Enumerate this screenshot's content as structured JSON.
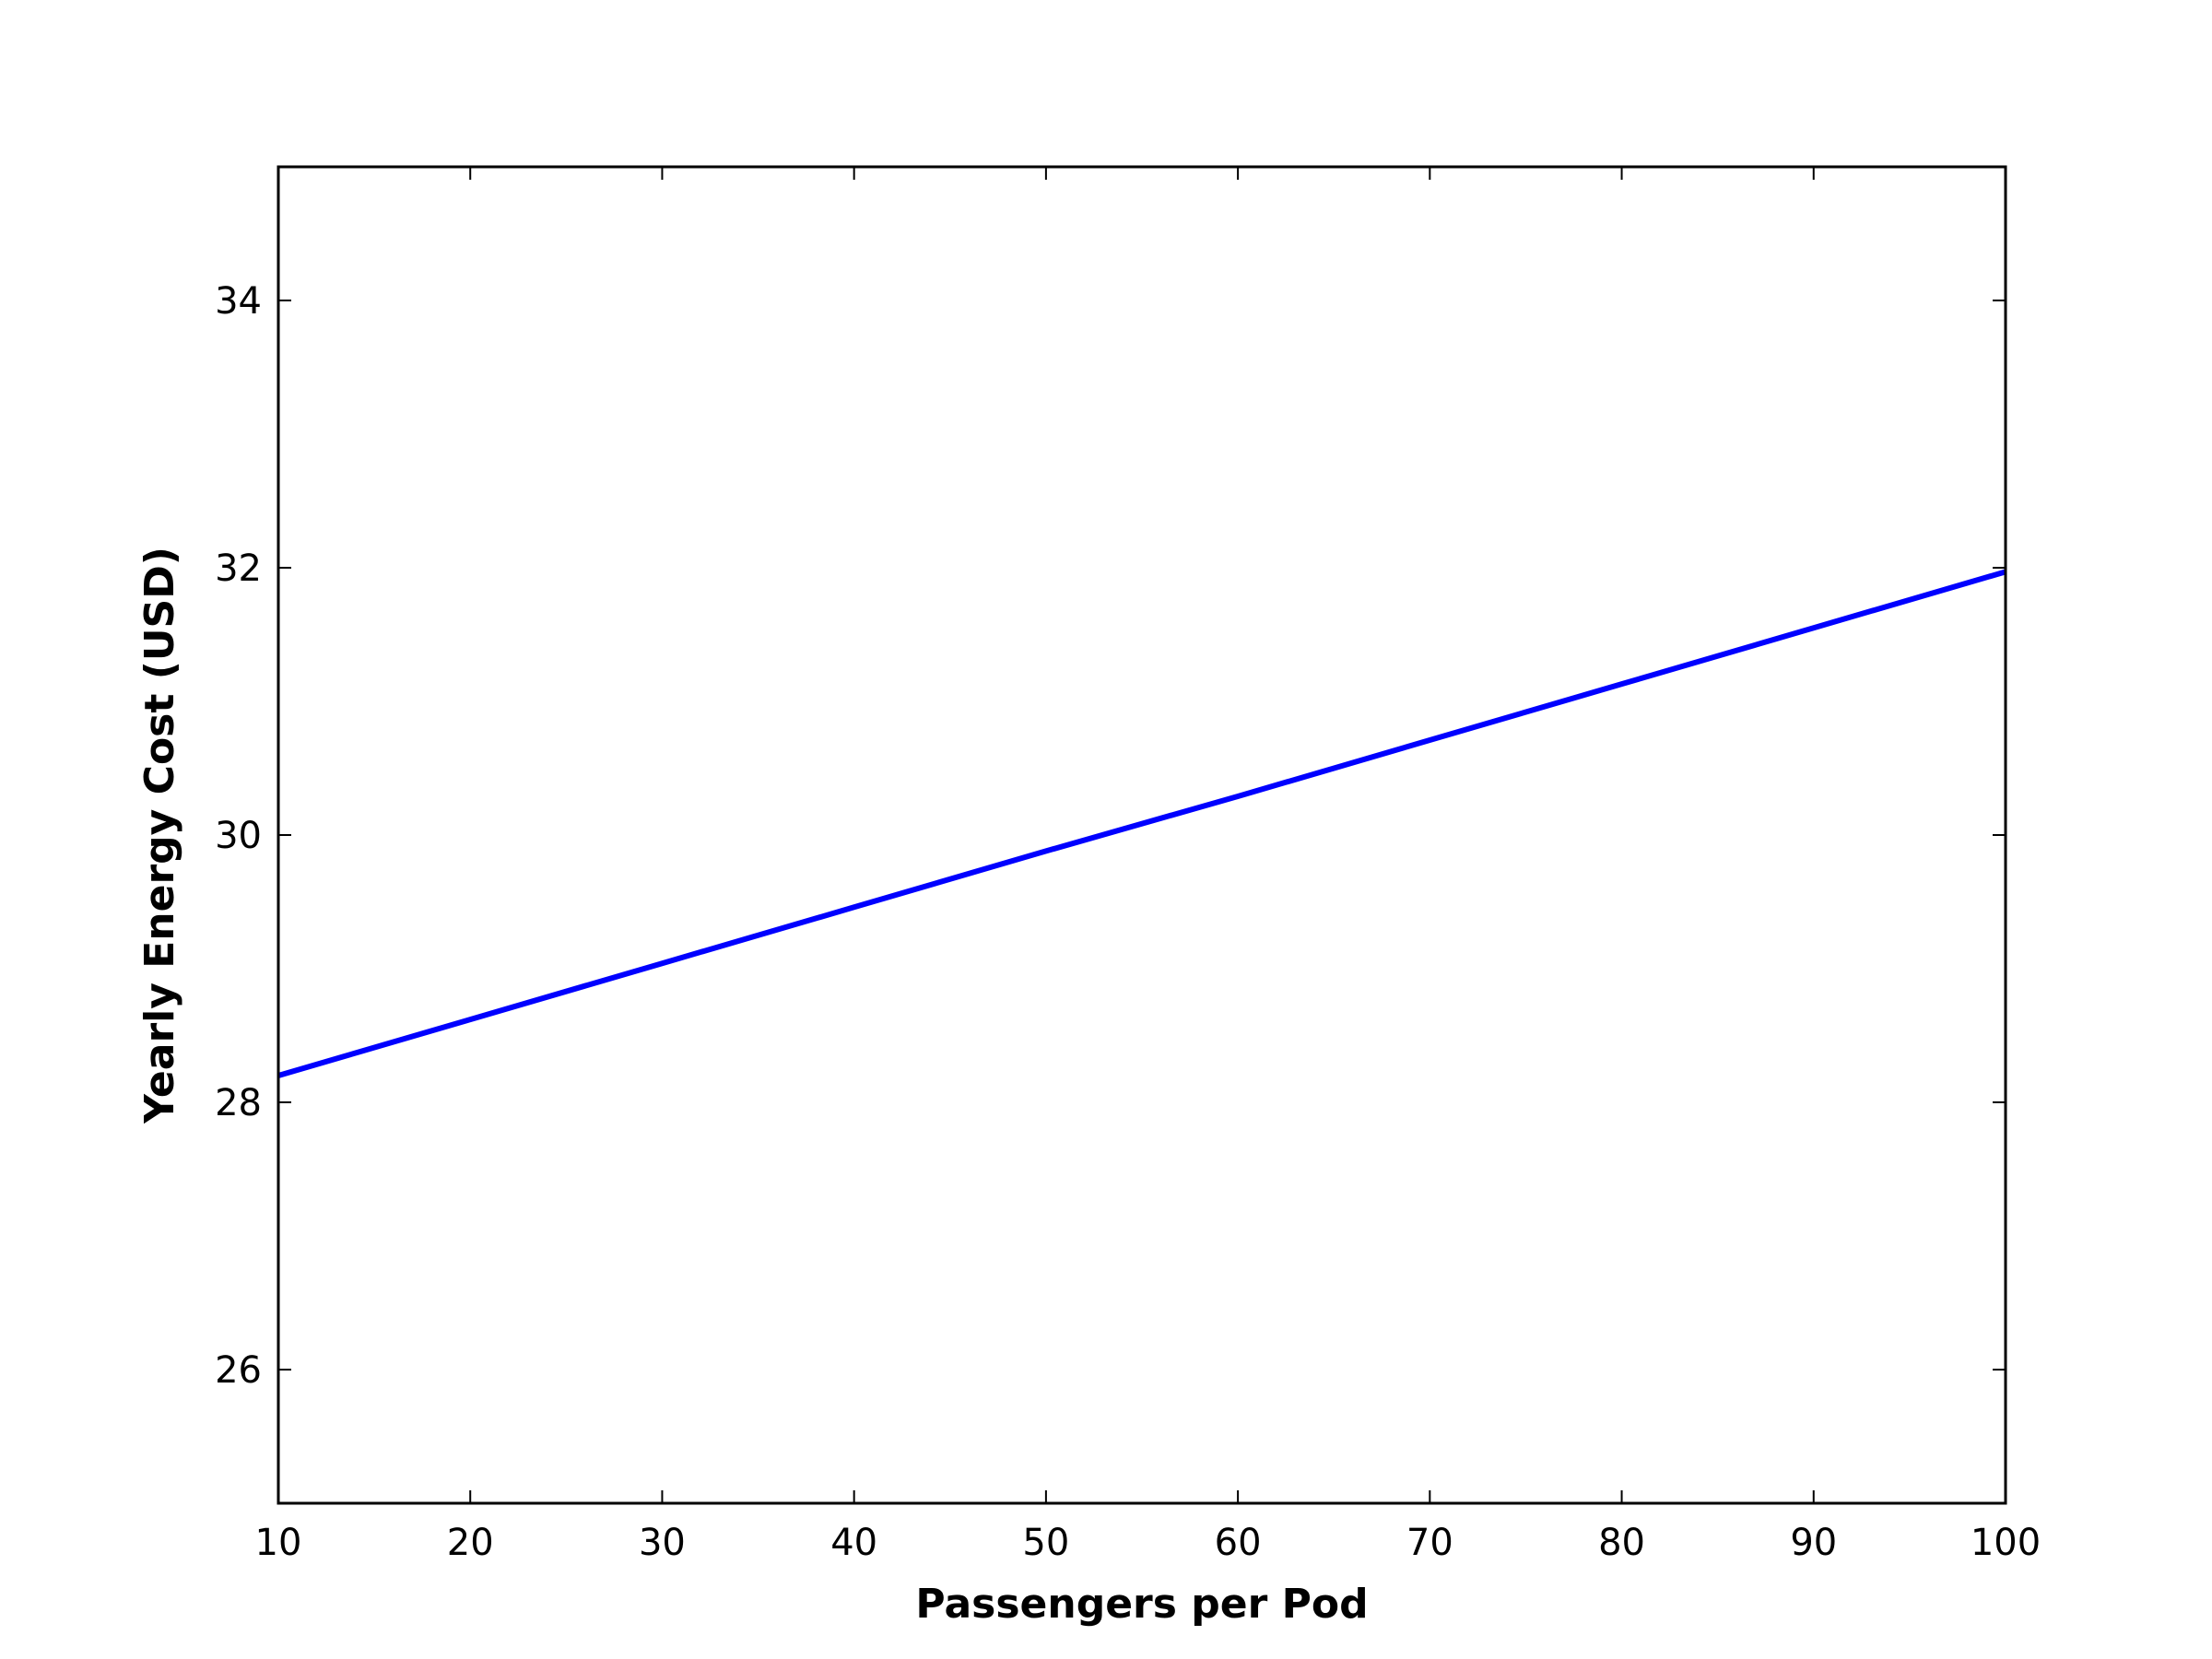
{
  "chart_data": {
    "type": "line",
    "title": "",
    "xlabel": "Passengers per Pod",
    "ylabel": "Yearly Energy Cost (USD)",
    "xlim": [
      10,
      100
    ],
    "ylim": [
      25,
      35
    ],
    "x_ticks": [
      10,
      20,
      30,
      40,
      50,
      60,
      70,
      80,
      90,
      100
    ],
    "y_ticks": [
      26,
      28,
      30,
      32,
      34
    ],
    "x_tick_labels": [
      "10",
      "20",
      "30",
      "40",
      "50",
      "60",
      "70",
      "80",
      "90",
      "100"
    ],
    "y_tick_labels": [
      "26",
      "28",
      "30",
      "32",
      "34"
    ],
    "grid": false,
    "legend": "none",
    "series": [
      {
        "color": "#0000ff",
        "x": [
          10,
          20,
          30,
          40,
          50,
          60,
          70,
          80,
          90,
          100
        ],
        "y": [
          28.2,
          28.62,
          29.04,
          29.46,
          29.88,
          30.29,
          30.71,
          31.13,
          31.55,
          31.97
        ]
      }
    ]
  }
}
